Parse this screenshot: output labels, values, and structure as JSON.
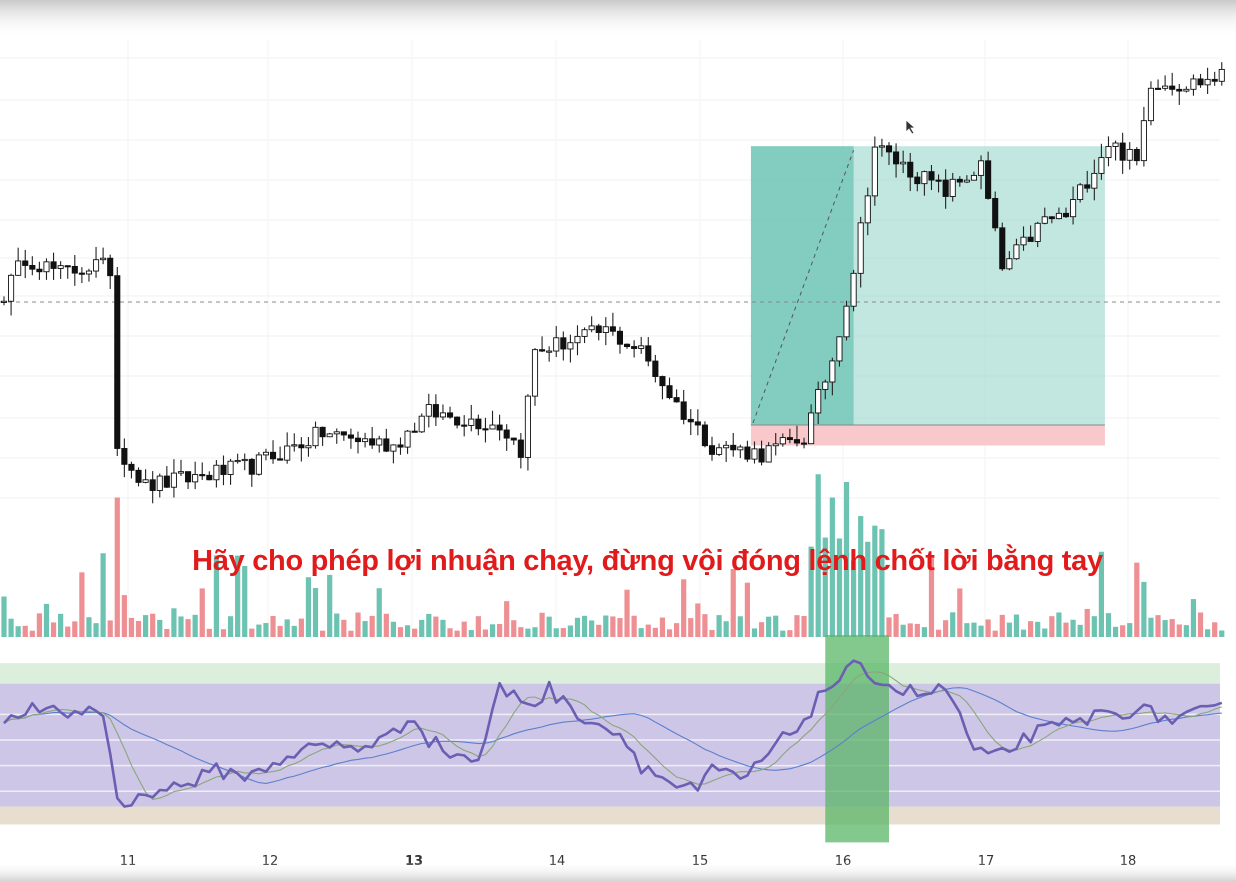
{
  "caption": "Hãy cho phép lợi nhuận chạy, đừng vội đóng lệnh chốt lời bằng tay",
  "colors": {
    "up_body": "#ffffff",
    "down_body": "#111111",
    "wick": "#222222",
    "vol_up": "#6cc3b1",
    "vol_down": "#ee8f93",
    "rsi_line": "#6b5fb3",
    "rsi_ma": "#8aa67a",
    "rsi_slow": "#5b7fd0",
    "profit_zone": "#8fd3c9",
    "stop_zone": "#f7c2c4",
    "highlight": "#59b567"
  },
  "chart_data": [
    {
      "type": "candlestick",
      "x_axis": {
        "ticks": [
          "11",
          "12",
          "13",
          "14",
          "15",
          "16",
          "17",
          "18"
        ],
        "bold_tick": "13"
      },
      "price": {
        "ylim": [
          0,
          100
        ],
        "dashed_reference_level": 40,
        "anchors": [
          [
            0,
            42
          ],
          [
            3,
            51
          ],
          [
            8,
            47
          ],
          [
            13,
            49
          ],
          [
            15,
            48
          ],
          [
            16,
            5
          ],
          [
            20,
            -5
          ],
          [
            35,
            0
          ],
          [
            45,
            8
          ],
          [
            55,
            5
          ],
          [
            60,
            13
          ],
          [
            70,
            10
          ],
          [
            73,
            4
          ],
          [
            75,
            28
          ],
          [
            85,
            33
          ],
          [
            90,
            28
          ],
          [
            95,
            15
          ],
          [
            100,
            5
          ],
          [
            107,
            3
          ],
          [
            113,
            7
          ],
          [
            117,
            26
          ],
          [
            120,
            48
          ],
          [
            123,
            78
          ],
          [
            128,
            72
          ],
          [
            133,
            67
          ],
          [
            138,
            73
          ],
          [
            141,
            48
          ],
          [
            143,
            52
          ],
          [
            147,
            60
          ],
          [
            150,
            61
          ],
          [
            156,
            79
          ],
          [
            160,
            74
          ],
          [
            162,
            94
          ],
          [
            167,
            93
          ],
          [
            172,
            95
          ]
        ]
      },
      "volume": {
        "ylim": [
          0,
          100
        ],
        "spikes": [
          [
            16,
            90
          ],
          [
            115,
            105
          ],
          [
            117,
            90
          ],
          [
            119,
            100
          ],
          [
            121,
            78
          ],
          [
            155,
            55
          ],
          [
            160,
            48
          ]
        ]
      },
      "position": {
        "entry_index": 105.5,
        "exit_index": 155.5,
        "take_profit": 78,
        "entry": 10,
        "stop_loss": 5,
        "hold_until_index": 120
      }
    },
    {
      "type": "line",
      "name": "RSI",
      "ylim": [
        0,
        100
      ],
      "bands": [
        60,
        50,
        40,
        30
      ],
      "highlight_range": [
        116,
        125
      ],
      "anchors": [
        [
          0,
          55
        ],
        [
          3,
          62
        ],
        [
          8,
          60
        ],
        [
          13,
          62
        ],
        [
          14,
          60
        ],
        [
          16,
          28
        ],
        [
          18,
          24
        ],
        [
          20,
          30
        ],
        [
          25,
          32
        ],
        [
          30,
          38
        ],
        [
          35,
          36
        ],
        [
          40,
          44
        ],
        [
          45,
          48
        ],
        [
          50,
          47
        ],
        [
          55,
          52
        ],
        [
          58,
          60
        ],
        [
          60,
          50
        ],
        [
          63,
          45
        ],
        [
          67,
          42
        ],
        [
          70,
          70
        ],
        [
          75,
          64
        ],
        [
          77,
          70
        ],
        [
          80,
          62
        ],
        [
          85,
          55
        ],
        [
          88,
          50
        ],
        [
          90,
          40
        ],
        [
          95,
          32
        ],
        [
          98,
          30
        ],
        [
          100,
          38
        ],
        [
          105,
          35
        ],
        [
          107,
          42
        ],
        [
          110,
          50
        ],
        [
          113,
          58
        ],
        [
          116,
          70
        ],
        [
          120,
          78
        ],
        [
          123,
          75
        ],
        [
          126,
          70
        ],
        [
          130,
          68
        ],
        [
          133,
          70
        ],
        [
          135,
          60
        ],
        [
          137,
          45
        ],
        [
          140,
          43
        ],
        [
          145,
          52
        ],
        [
          150,
          56
        ],
        [
          155,
          60
        ],
        [
          160,
          62
        ],
        [
          165,
          58
        ],
        [
          172,
          62
        ]
      ]
    }
  ]
}
